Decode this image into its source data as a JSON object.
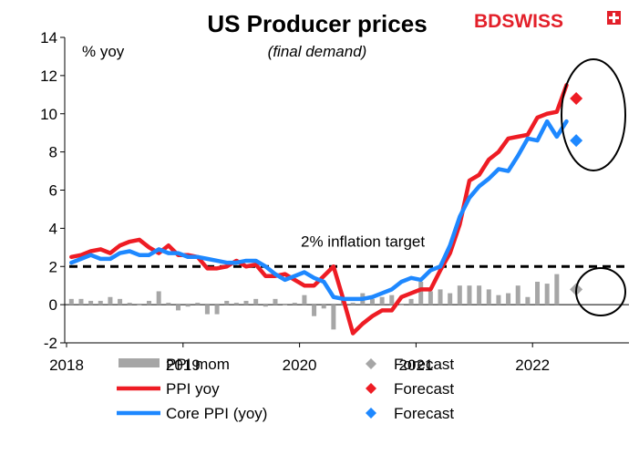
{
  "colors": {
    "ppi_mom": "#a6a6a6",
    "ppi_yoy": "#ee1c24",
    "core_ppi": "#1e88ff",
    "target_line": "#000000",
    "brand": "#e3202a"
  },
  "brand": {
    "logo_text": "BDSWISS",
    "logo_icon": "swiss-cross-icon"
  },
  "chart_data": {
    "type": "line",
    "title": "US Producer prices",
    "subtitle": "(final demand)",
    "ylabel": "% yoy",
    "ylim": [
      -2,
      14
    ],
    "yticks": [
      "-2",
      "0",
      "2",
      "4",
      "6",
      "8",
      "10",
      "12",
      "14"
    ],
    "xticks": [
      "2018",
      "2019",
      "2020",
      "2021",
      "2022"
    ],
    "xtick_dates": [
      "2018-01",
      "2019-01",
      "2020-01",
      "2021-01",
      "2022-01"
    ],
    "grid": false,
    "legend_position": "bottom",
    "annotations": {
      "target_label": "2% inflation target",
      "target_value": 2
    },
    "x": [
      "2018-01",
      "2018-02",
      "2018-03",
      "2018-04",
      "2018-05",
      "2018-06",
      "2018-07",
      "2018-08",
      "2018-09",
      "2018-10",
      "2018-11",
      "2018-12",
      "2019-01",
      "2019-02",
      "2019-03",
      "2019-04",
      "2019-05",
      "2019-06",
      "2019-07",
      "2019-08",
      "2019-09",
      "2019-10",
      "2019-11",
      "2019-12",
      "2020-01",
      "2020-02",
      "2020-03",
      "2020-04",
      "2020-05",
      "2020-06",
      "2020-07",
      "2020-08",
      "2020-09",
      "2020-10",
      "2020-11",
      "2020-12",
      "2021-01",
      "2021-02",
      "2021-03",
      "2021-04",
      "2021-05",
      "2021-06",
      "2021-07",
      "2021-08",
      "2021-09",
      "2021-10",
      "2021-11",
      "2021-12",
      "2022-01",
      "2022-02",
      "2022-03"
    ],
    "series": [
      {
        "name": "PPI mom",
        "kind": "bar",
        "values": [
          0.3,
          0.3,
          0.2,
          0.2,
          0.4,
          0.3,
          0.1,
          0.0,
          0.2,
          0.7,
          0.1,
          -0.3,
          -0.1,
          0.1,
          -0.5,
          -0.5,
          0.2,
          0.1,
          0.2,
          0.3,
          -0.1,
          0.3,
          0.0,
          0.1,
          0.5,
          -0.6,
          -0.2,
          -1.3,
          0.3,
          0.1,
          0.6,
          0.3,
          0.4,
          0.5,
          0.0,
          0.3,
          1.2,
          0.7,
          0.8,
          0.6,
          1.0,
          1.0,
          1.0,
          0.8,
          0.5,
          0.6,
          1.0,
          0.4,
          1.2,
          1.1,
          1.6
        ]
      },
      {
        "name": "PPI yoy",
        "kind": "line",
        "values": [
          2.5,
          2.6,
          2.8,
          2.9,
          2.7,
          3.1,
          3.3,
          3.4,
          3.0,
          2.7,
          3.1,
          2.6,
          2.6,
          2.5,
          1.9,
          1.9,
          2.0,
          2.3,
          2.0,
          2.1,
          1.5,
          1.5,
          1.6,
          1.3,
          1.0,
          1.0,
          1.5,
          2.0,
          0.3,
          -1.5,
          -1.0,
          -0.6,
          -0.3,
          -0.3,
          0.4,
          0.6,
          0.8,
          0.8,
          1.8,
          2.7,
          4.2,
          6.5,
          6.8,
          7.6,
          8.0,
          8.7,
          8.8,
          8.9,
          9.8,
          10.0,
          10.1
        ]
      },
      {
        "name": "Core PPI (yoy)",
        "kind": "line",
        "values": [
          2.2,
          2.4,
          2.6,
          2.4,
          2.4,
          2.7,
          2.8,
          2.6,
          2.6,
          2.9,
          2.7,
          2.7,
          2.5,
          2.5,
          2.4,
          2.3,
          2.2,
          2.2,
          2.3,
          2.3,
          2.0,
          1.6,
          1.3,
          1.5,
          1.7,
          1.4,
          1.2,
          0.4,
          0.3,
          0.3,
          0.3,
          0.4,
          0.6,
          0.8,
          1.2,
          1.4,
          1.3,
          1.8,
          2.0,
          3.1,
          4.6,
          5.6,
          6.2,
          6.6,
          7.1,
          7.0,
          7.8,
          8.7,
          8.6,
          9.6,
          8.8
        ]
      }
    ],
    "forecasts": [
      {
        "series": "PPI mom",
        "x": "2022-04",
        "value": 0.8
      },
      {
        "series": "PPI yoy",
        "x": "2022-04",
        "value": 10.8
      },
      {
        "series": "Core PPI (yoy)",
        "x": "2022-04",
        "value": 8.6
      }
    ],
    "extra_line": {
      "series": "PPI yoy",
      "x": "2022-04",
      "value": 11.5,
      "prev_core": 9.6
    },
    "legend": [
      {
        "label": "PPI mom",
        "swatch": "bar",
        "color_key": "ppi_mom"
      },
      {
        "label": "Forecast",
        "swatch": "diamond",
        "color_key": "ppi_mom"
      },
      {
        "label": "PPI yoy",
        "swatch": "line",
        "color_key": "ppi_yoy"
      },
      {
        "label": "Forecast",
        "swatch": "diamond",
        "color_key": "ppi_yoy"
      },
      {
        "label": "Core PPI (yoy)",
        "swatch": "line",
        "color_key": "core_ppi"
      },
      {
        "label": "Forecast",
        "swatch": "diamond",
        "color_key": "core_ppi"
      }
    ]
  }
}
